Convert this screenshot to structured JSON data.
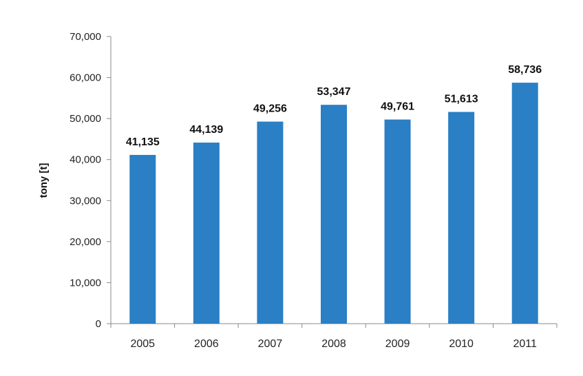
{
  "chart_data": {
    "type": "bar",
    "title": "",
    "xlabel": "",
    "ylabel": "tony [t]",
    "categories": [
      "2005",
      "2006",
      "2007",
      "2008",
      "2009",
      "2010",
      "2011"
    ],
    "values": [
      41135,
      44139,
      49256,
      53347,
      49761,
      51613,
      58736
    ],
    "data_labels": [
      "41,135",
      "44,139",
      "49,256",
      "53,347",
      "49,761",
      "51,613",
      "58,736"
    ],
    "ylim": [
      0,
      70000
    ],
    "yticks": [
      0,
      10000,
      20000,
      30000,
      40000,
      50000,
      60000,
      70000
    ],
    "ytick_labels": [
      "0",
      "10,000",
      "20,000",
      "30,000",
      "40,000",
      "50,000",
      "60,000",
      "70,000"
    ],
    "grid": false,
    "legend": "none",
    "bar_color": "#2a7fc5"
  }
}
